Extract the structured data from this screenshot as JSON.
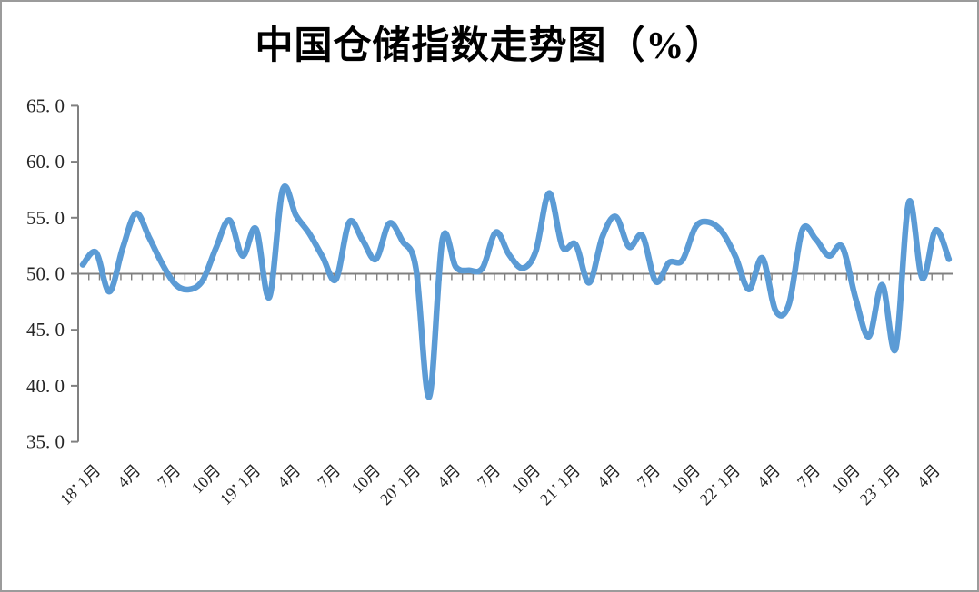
{
  "chart_data": {
    "type": "line",
    "title": "中国仓储指数走势图（%）",
    "smoothed": true,
    "line_color": "#5B9BD5",
    "axis_color": "#808080",
    "tick_label_color": "#262626",
    "ylim": [
      35,
      65
    ],
    "x_axis_cross_at": 50,
    "y_tick_values": [
      65,
      60,
      55,
      50,
      45,
      40,
      35
    ],
    "y_tick_labels": [
      "65. 0",
      "60. 0",
      "55. 0",
      "50. 0",
      "45. 0",
      "40. 0",
      "35. 0"
    ],
    "x_tick_labels": [
      "18’ 1月",
      "4月",
      "7月",
      "10月",
      "19’ 1月",
      "4月",
      "7月",
      "10月",
      "20’ 1月",
      "4月",
      "7月",
      "10月",
      "21’ 1月",
      "4月",
      "7月",
      "10月",
      "22’ 1月",
      "4月",
      "7月",
      "10月",
      "23’ 1月",
      "4月"
    ],
    "x_label_start_index": 1,
    "x_label_every": 3,
    "series": [
      {
        "values": [
          50.8,
          51.9,
          48.4,
          52.3,
          55.4,
          53.2,
          50.8,
          49.0,
          48.6,
          49.4,
          52.3,
          54.8,
          51.6,
          54.0,
          47.9,
          57.5,
          55.2,
          53.6,
          51.5,
          49.5,
          54.6,
          53.0,
          51.3,
          54.5,
          52.9,
          50.5,
          39.0,
          53.1,
          50.6,
          50.3,
          50.5,
          53.7,
          51.7,
          50.5,
          52.0,
          57.2,
          52.4,
          52.6,
          49.2,
          53.3,
          55.1,
          52.4,
          53.4,
          49.3,
          51.0,
          51.2,
          54.2,
          54.6,
          53.7,
          51.5,
          48.6,
          51.4,
          46.7,
          47.3,
          53.9,
          53.1,
          51.6,
          52.4,
          47.8,
          44.4,
          49.0,
          43.3,
          56.4,
          49.6,
          53.9,
          51.3
        ]
      }
    ]
  }
}
